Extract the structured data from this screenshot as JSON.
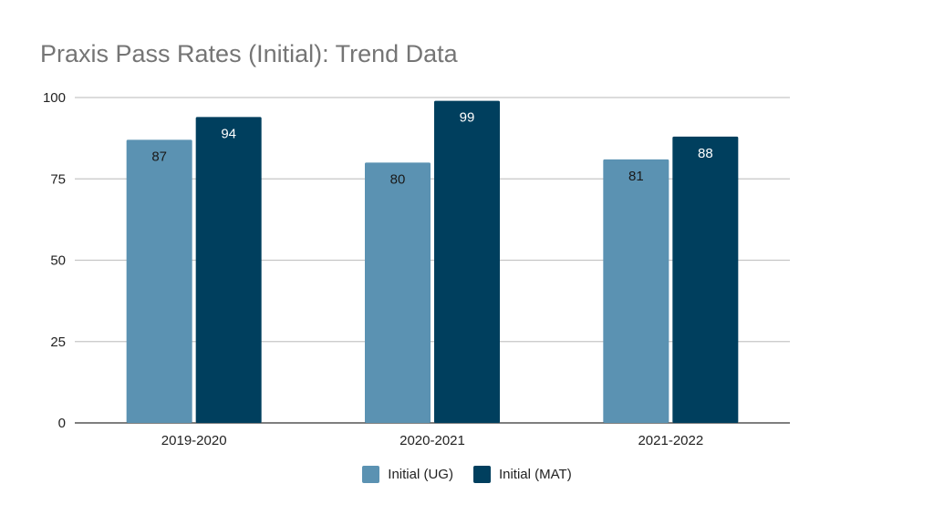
{
  "chart_data": {
    "type": "bar",
    "title": "Praxis Pass Rates (Initial): Trend Data",
    "categories": [
      "2019-2020",
      "2020-2021",
      "2021-2022"
    ],
    "series": [
      {
        "name": "Initial (UG)",
        "values": [
          87,
          80,
          81
        ],
        "color": "#5b92b2",
        "label_color": "#1a1a1a"
      },
      {
        "name": "Initial (MAT)",
        "values": [
          94,
          99,
          88
        ],
        "color": "#003f5e",
        "label_color": "#ffffff"
      }
    ],
    "ylim": [
      0,
      100
    ],
    "yticks": [
      0,
      25,
      50,
      75,
      100
    ],
    "grid": true,
    "legend_position": "bottom",
    "xlabel": "",
    "ylabel": ""
  }
}
